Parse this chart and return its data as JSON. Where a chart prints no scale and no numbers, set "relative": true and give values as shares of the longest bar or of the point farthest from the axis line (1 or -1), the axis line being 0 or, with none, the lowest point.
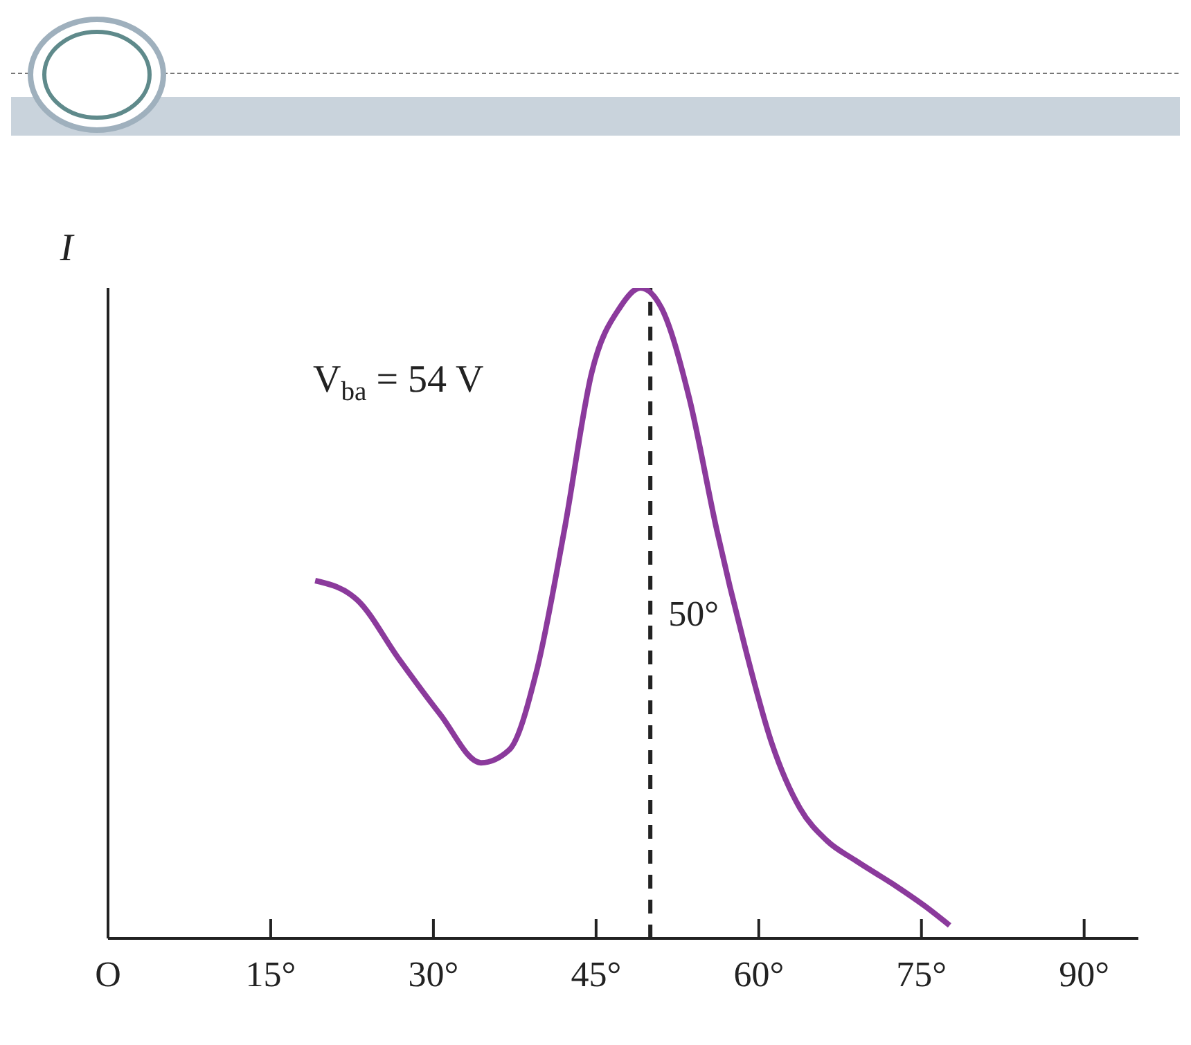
{
  "chart_data": {
    "type": "line",
    "relative": true,
    "ylabel": "I",
    "color": "#8b3a9c",
    "x": [
      19.1,
      23,
      26.8,
      30.6,
      34.4,
      37,
      39.5,
      42.1,
      44.6,
      47.2,
      49.1,
      51,
      53.6,
      56.1,
      58.7,
      61.2,
      63.8,
      66.3,
      68.9,
      72.7,
      75.3,
      77.6
    ],
    "values": [
      0.55,
      0.52,
      0.43,
      0.345,
      0.27,
      0.29,
      0.41,
      0.63,
      0.87,
      0.97,
      1,
      0.97,
      0.83,
      0.63,
      0.45,
      0.3,
      0.2,
      0.15,
      0.12,
      0.08,
      0.05,
      0.02
    ],
    "xlim": [
      0,
      95
    ],
    "xticks": [
      {
        "value": 0,
        "label": "O"
      },
      {
        "value": 15,
        "label": "15°"
      },
      {
        "value": 30,
        "label": "30°"
      },
      {
        "value": 45,
        "label": "45°"
      },
      {
        "value": 60,
        "label": "60°"
      },
      {
        "value": 75,
        "label": "75°"
      },
      {
        "value": 90,
        "label": "90°"
      }
    ],
    "ref_lines": [
      {
        "axis": "x",
        "value": 50,
        "label": "50°",
        "color": "#222222",
        "line_style": "dashed"
      }
    ],
    "annotations": [
      "V$_{ba}$ = 54 V"
    ],
    "grid": false,
    "legend": false,
    "marker": "none",
    "line_style": "solid"
  }
}
